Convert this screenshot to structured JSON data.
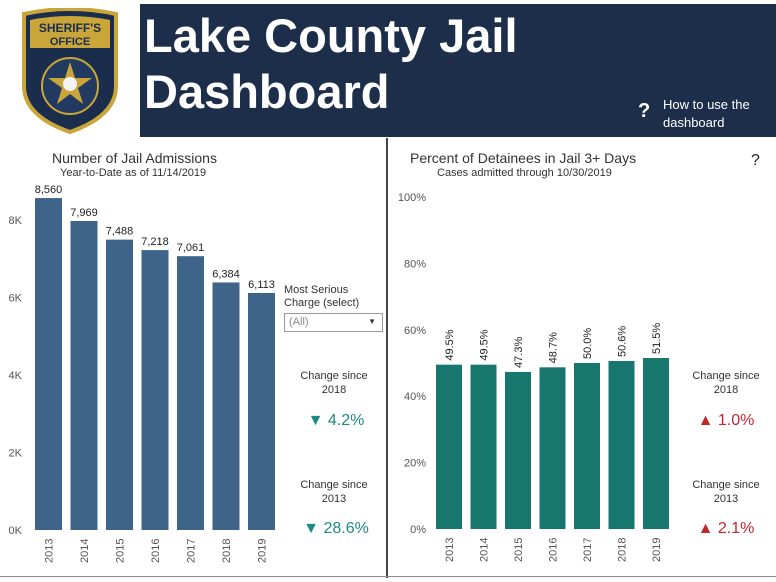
{
  "header": {
    "badge_top": "SHERIFF'S",
    "badge_bottom": "OFFICE",
    "title_line1": "Lake County Jail",
    "title_line2": "Dashboard",
    "help_icon": "?",
    "help_text": "How to use the dashboard",
    "bg_color": "#1c2e4a"
  },
  "left_panel": {
    "title": "Number of Jail Admissions",
    "subtitle": "Year-to-Date as of 11/14/2019",
    "filter_label": "Most Serious Charge (select)",
    "filter_value": "(All)",
    "kpi1_label": "Change since 2018",
    "kpi1_value": "▼ 4.2%",
    "kpi2_label": "Change since 2013",
    "kpi2_value": "▼ 28.6%",
    "kpi_color": "#1e8a84"
  },
  "right_panel": {
    "title": "Percent of Detainees in Jail 3+ Days",
    "subtitle": "Cases admitted through 10/30/2019",
    "help_icon": "?",
    "kpi1_label": "Change since 2018",
    "kpi1_value": "▲ 1.0%",
    "kpi2_label": "Change since 2013",
    "kpi2_value": "▲ 2.1%",
    "kpi_color": "#c0272d"
  },
  "chart_data": [
    {
      "type": "bar",
      "title": "Number of Jail Admissions",
      "categories": [
        "2013",
        "2014",
        "2015",
        "2016",
        "2017",
        "2018",
        "2019"
      ],
      "values": [
        8560,
        7969,
        7488,
        7218,
        7061,
        6384,
        6113
      ],
      "value_labels": [
        "8,560",
        "7,969",
        "7,488",
        "7,218",
        "7,061",
        "6,384",
        "6,113"
      ],
      "yticks": [
        "0K",
        "2K",
        "4K",
        "6K",
        "8K"
      ],
      "ylim": [
        0,
        9000
      ],
      "color": "#3e6489"
    },
    {
      "type": "bar",
      "title": "Percent of Detainees in Jail 3+ Days",
      "categories": [
        "2013",
        "2014",
        "2015",
        "2016",
        "2017",
        "2018",
        "2019"
      ],
      "values": [
        49.5,
        49.5,
        47.3,
        48.7,
        50.0,
        50.6,
        51.5
      ],
      "value_labels": [
        "49.5%",
        "49.5%",
        "47.3%",
        "48.7%",
        "50.0%",
        "50.6%",
        "51.5%"
      ],
      "yticks": [
        "0%",
        "20%",
        "40%",
        "60%",
        "80%",
        "100%"
      ],
      "ylim": [
        0,
        100
      ],
      "color": "#17776f"
    }
  ]
}
